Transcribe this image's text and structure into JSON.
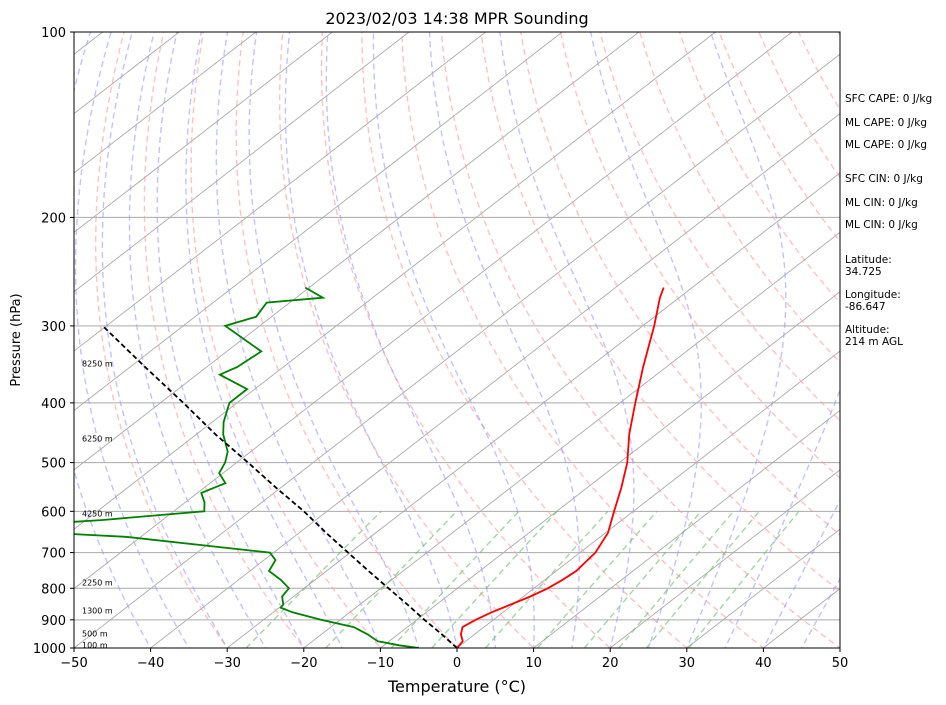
{
  "chart_data": {
    "type": "line",
    "title": "2023/02/03 14:38 MPR Sounding",
    "xlabel": "Temperature (°C)",
    "ylabel": "Pressure (hPa)",
    "xlim": [
      -50,
      50
    ],
    "ylim": [
      1000,
      100
    ],
    "yscale": "log",
    "skew": true,
    "grid": true,
    "x_ticks": [
      "−50",
      "−40",
      "−30",
      "−20",
      "−10",
      "0",
      "10",
      "20",
      "30",
      "40",
      "50"
    ],
    "y_ticks": [
      "100",
      "200",
      "300",
      "400",
      "500",
      "600",
      "700",
      "800",
      "900",
      "1000"
    ],
    "series": [
      {
        "role": "temperature",
        "color": "#ff0000",
        "pressure": [
          1000,
          975,
          950,
          925,
          900,
          875,
          850,
          825,
          800,
          775,
          750,
          700,
          650,
          600,
          550,
          500,
          450,
          400,
          350,
          300,
          270,
          260
        ],
        "temperature": [
          0.0,
          -0.4,
          -1.8,
          -2.8,
          -2.3,
          -1.5,
          -0.3,
          0.9,
          1.8,
          2.3,
          2.6,
          2.0,
          0.3,
          -2.5,
          -5.5,
          -9.0,
          -13.5,
          -18.0,
          -23.0,
          -28.5,
          -32.5,
          -33.7
        ]
      },
      {
        "role": "dewpoint",
        "color": "#008000",
        "pressure": [
          1000,
          990,
          975,
          950,
          925,
          900,
          875,
          860,
          850,
          825,
          800,
          775,
          750,
          720,
          700,
          660,
          640,
          620,
          600,
          580,
          560,
          540,
          520,
          500,
          480,
          450,
          430,
          400,
          380,
          360,
          350,
          330,
          300,
          290,
          275,
          270,
          260
        ],
        "temperature": [
          -5.0,
          -8.0,
          -11.5,
          -14.0,
          -17.0,
          -22.5,
          -27.5,
          -29.8,
          -30.0,
          -31.5,
          -32.0,
          -34.5,
          -37.5,
          -38.5,
          -40.5,
          -62.0,
          -84.0,
          -68.0,
          -56.0,
          -57.5,
          -59.5,
          -58.0,
          -60.5,
          -61.5,
          -63.0,
          -66.5,
          -68.5,
          -71.0,
          -71.0,
          -77.0,
          -76.0,
          -75.5,
          -84.5,
          -82.0,
          -83.0,
          -76.5,
          -80.5
        ]
      },
      {
        "role": "parcel",
        "color": "#000000",
        "pressure": [
          1000,
          950,
          900,
          850,
          800,
          750,
          700,
          650,
          600,
          550,
          500,
          450,
          400,
          350,
          300
        ],
        "temperature": [
          0.0,
          -4.3,
          -9.0,
          -13.8,
          -19.0,
          -24.5,
          -30.3,
          -36.5,
          -43.0,
          -50.5,
          -58.5,
          -67.5,
          -77.0,
          -88.0,
          -100.5
        ]
      }
    ],
    "height_labels": [
      "100 m",
      "500 m",
      "1300 m",
      "2250 m",
      "4250 m",
      "6250 m",
      "8250 m"
    ],
    "height_label_pressures": [
      988,
      948,
      870,
      783,
      605,
      457,
      345
    ],
    "colors": {
      "dry_adiabats": "#ff9999",
      "moist_adiabats": "#9999ff",
      "mixing_ratio": "#66bb66",
      "isotherms": "#aaaaaa",
      "isobars": "#aaaaaa"
    }
  },
  "side_panel": [
    {
      "label": "SFC CAPE: 0 J/kg"
    },
    {
      "label": "ML CAPE: 0 J/kg"
    },
    {
      "label": "ML CAPE: 0 J/kg"
    },
    {
      "label": "SFC CIN: 0 J/kg"
    },
    {
      "label": "ML CIN: 0 J/kg"
    },
    {
      "label": "ML CIN: 0 J/kg"
    },
    {
      "label": "Latitude:",
      "value": "34.725"
    },
    {
      "label": "Longitude:",
      "value": "-86.647"
    },
    {
      "label": "Altitude:",
      "value": "214 m AGL"
    }
  ]
}
